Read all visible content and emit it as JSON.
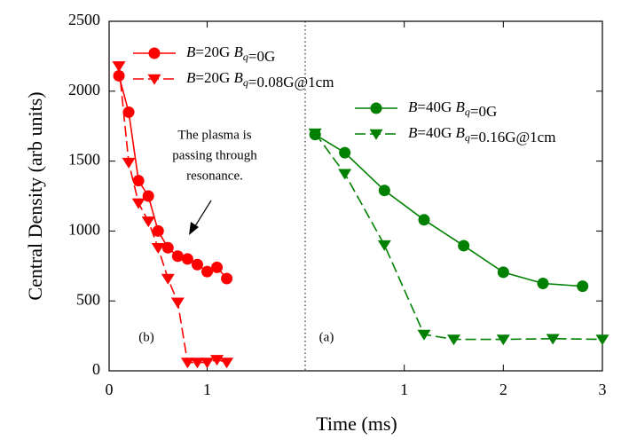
{
  "chart_data": [
    {
      "type": "line",
      "xlabel": "Time (ms)",
      "ylabel": "Central Density (arb units)",
      "panel_label": "(b)",
      "annotation": [
        "The plasma is",
        "passing through",
        "resonance."
      ],
      "xlim": [
        0,
        2
      ],
      "xticks": [
        0,
        1
      ],
      "ylim": [
        0,
        2500
      ],
      "yticks": [
        0,
        500,
        1000,
        1500,
        2000,
        2500
      ],
      "legend": "upper left",
      "series": [
        {
          "name": "B=20G Bq=0G",
          "color": "#ff0000",
          "marker": "circle",
          "dash": false,
          "x": [
            0.1,
            0.2,
            0.3,
            0.4,
            0.5,
            0.6,
            0.7,
            0.8,
            0.9,
            1.0,
            1.1,
            1.2
          ],
          "values": [
            2110,
            1850,
            1360,
            1250,
            1000,
            880,
            820,
            800,
            760,
            710,
            740,
            660
          ]
        },
        {
          "name": "B=20G Bq=0.08G@1cm",
          "color": "#ff0000",
          "marker": "triangle",
          "dash": true,
          "x": [
            0.1,
            0.2,
            0.3,
            0.4,
            0.5,
            0.6,
            0.7,
            0.8,
            0.9,
            1.0,
            1.1,
            1.2
          ],
          "values": [
            2180,
            1490,
            1200,
            1070,
            880,
            660,
            490,
            60,
            60,
            60,
            80,
            60
          ]
        }
      ]
    },
    {
      "type": "line",
      "panel_label": "(a)",
      "xlim": [
        0,
        3
      ],
      "xticks": [
        1,
        2,
        3
      ],
      "ylim": [
        0,
        2500
      ],
      "legend": "upper left",
      "series": [
        {
          "name": "B=40G Bq=0G",
          "color": "#008000",
          "marker": "circle",
          "dash": false,
          "x": [
            0.1,
            0.4,
            0.8,
            1.2,
            1.6,
            2.0,
            2.4,
            2.8
          ],
          "values": [
            1690,
            1560,
            1290,
            1080,
            895,
            705,
            625,
            605
          ]
        },
        {
          "name": "B=40G Bq=0.16G@1cm",
          "color": "#008000",
          "marker": "triangle",
          "dash": true,
          "x": [
            0.1,
            0.4,
            0.8,
            1.2,
            1.5,
            2.0,
            2.5,
            3.0
          ],
          "values": [
            1700,
            1410,
            900,
            260,
            225,
            225,
            230,
            225
          ]
        }
      ]
    }
  ]
}
